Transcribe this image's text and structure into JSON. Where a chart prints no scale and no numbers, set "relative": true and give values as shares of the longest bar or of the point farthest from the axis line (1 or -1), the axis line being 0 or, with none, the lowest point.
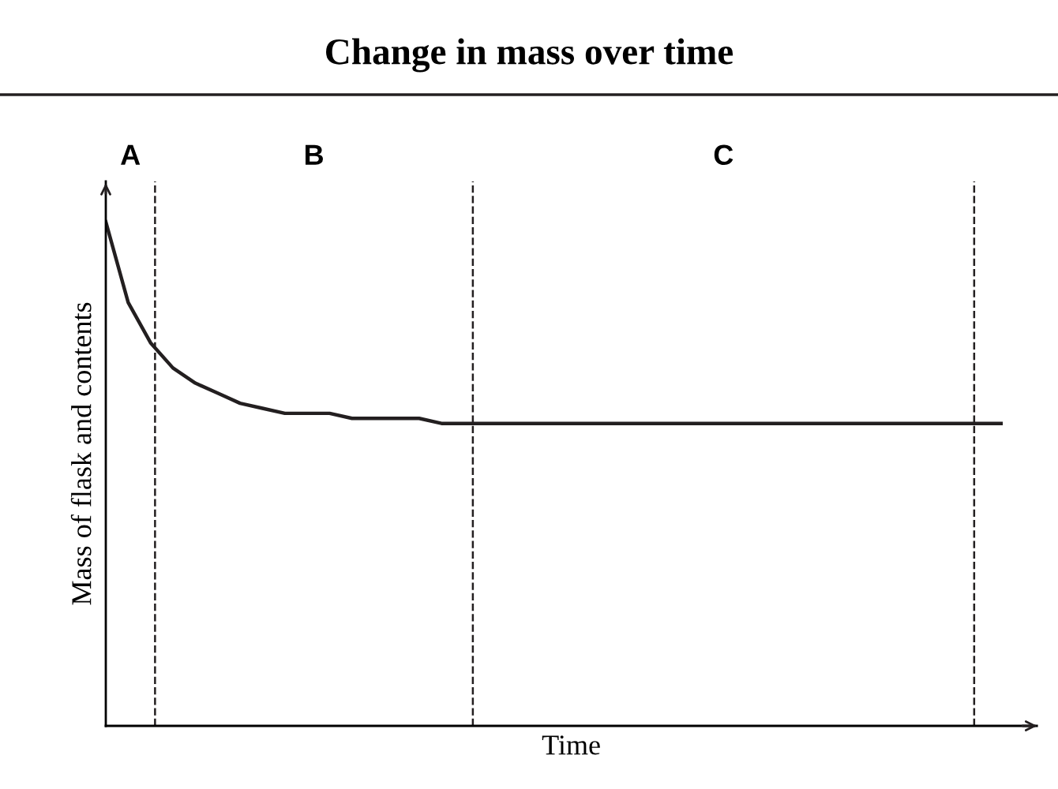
{
  "chart_data": {
    "type": "line",
    "title": "Change in mass over time",
    "xlabel": "Time",
    "ylabel": "Mass of flask and contents",
    "relative": true,
    "marker": "none",
    "line_style": "solid",
    "categories": [
      null,
      null,
      null,
      null,
      null,
      null,
      null,
      null,
      null,
      null,
      null,
      null,
      null,
      null,
      null,
      null,
      null,
      null,
      null,
      null,
      null,
      null,
      null,
      null,
      null,
      null,
      null,
      null,
      null,
      null,
      null,
      null,
      null,
      null,
      null,
      null,
      null,
      null,
      null,
      null,
      null
    ],
    "series": [
      {
        "color": "#231f20",
        "values": [
          1.0,
          0.84,
          0.76,
          0.71,
          0.68,
          0.66,
          0.64,
          0.63,
          0.62,
          0.62,
          0.62,
          0.61,
          0.61,
          0.61,
          0.61,
          0.6,
          0.6,
          0.6,
          0.6,
          0.6,
          0.6,
          0.6,
          0.6,
          0.6,
          0.6,
          0.6,
          0.6,
          0.6,
          0.6,
          0.6,
          0.6,
          0.6,
          0.6,
          0.6,
          0.6,
          0.6,
          0.6,
          0.6,
          0.6,
          0.6,
          0.6
        ]
      }
    ],
    "annotations": [
      "A",
      "B",
      "C"
    ]
  }
}
